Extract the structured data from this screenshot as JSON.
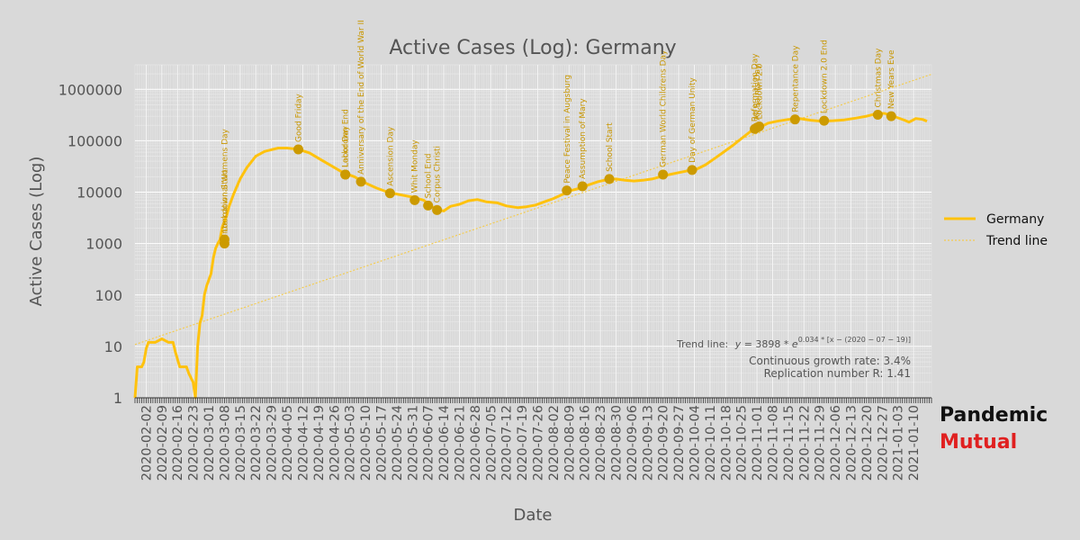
{
  "chart_data": {
    "type": "line",
    "title": "Active Cases (Log): Germany",
    "xlabel": "Date",
    "ylabel": "Active Cases (Log)",
    "y_scale": "log",
    "ylim": [
      1,
      3000000
    ],
    "xlim": [
      "2020-01-28",
      "2021-01-18"
    ],
    "yticks": [
      1,
      10,
      100,
      1000,
      10000,
      100000,
      1000000
    ],
    "ytick_labels": [
      "1",
      "10",
      "100",
      "1000",
      "10000",
      "100000",
      "1000000"
    ],
    "xtick_labels": [
      "2020-02-02",
      "2020-02-09",
      "2020-02-16",
      "2020-02-23",
      "2020-03-01",
      "2020-03-08",
      "2020-03-15",
      "2020-03-22",
      "2020-03-29",
      "2020-04-05",
      "2020-04-12",
      "2020-04-19",
      "2020-04-26",
      "2020-05-03",
      "2020-05-10",
      "2020-05-17",
      "2020-05-24",
      "2020-05-31",
      "2020-06-07",
      "2020-06-14",
      "2020-06-21",
      "2020-06-28",
      "2020-07-05",
      "2020-07-12",
      "2020-07-19",
      "2020-07-26",
      "2020-08-02",
      "2020-08-09",
      "2020-08-16",
      "2020-08-23",
      "2020-08-30",
      "2020-09-06",
      "2020-09-13",
      "2020-09-20",
      "2020-09-27",
      "2020-10-04",
      "2020-10-11",
      "2020-10-18",
      "2020-10-25",
      "2020-11-01",
      "2020-11-08",
      "2020-11-15",
      "2020-11-22",
      "2020-11-29",
      "2020-12-06",
      "2020-12-13",
      "2020-12-20",
      "2020-12-27",
      "2021-01-03",
      "2021-01-10"
    ],
    "grid": true,
    "legend_position": "right",
    "colors": {
      "series": "#ffc20e",
      "trend": "#f4cc50",
      "marker": "#cc9a00",
      "event_text": "#c89600",
      "background": "#d9d9d9",
      "grid": "#ffffff"
    },
    "series": [
      {
        "name": "Germany",
        "points": [
          [
            "2020-01-28",
            1
          ],
          [
            "2020-01-29",
            4
          ],
          [
            "2020-01-31",
            4
          ],
          [
            "2020-02-01",
            5
          ],
          [
            "2020-02-02",
            9
          ],
          [
            "2020-02-03",
            12
          ],
          [
            "2020-02-06",
            12
          ],
          [
            "2020-02-09",
            14
          ],
          [
            "2020-02-12",
            12
          ],
          [
            "2020-02-14",
            12
          ],
          [
            "2020-02-15",
            8
          ],
          [
            "2020-02-17",
            4
          ],
          [
            "2020-02-20",
            4
          ],
          [
            "2020-02-21",
            3
          ],
          [
            "2020-02-23",
            2
          ],
          [
            "2020-02-24",
            1
          ],
          [
            "2020-02-25",
            10
          ],
          [
            "2020-02-26",
            28
          ],
          [
            "2020-02-27",
            40
          ],
          [
            "2020-02-28",
            100
          ],
          [
            "2020-02-29",
            150
          ],
          [
            "2020-03-02",
            260
          ],
          [
            "2020-03-03",
            520
          ],
          [
            "2020-03-04",
            800
          ],
          [
            "2020-03-05",
            1000
          ],
          [
            "2020-03-06",
            1200
          ],
          [
            "2020-03-07",
            2100
          ],
          [
            "2020-03-09",
            3500
          ],
          [
            "2020-03-10",
            5200
          ],
          [
            "2020-03-12",
            9000
          ],
          [
            "2020-03-15",
            18000
          ],
          [
            "2020-03-18",
            30000
          ],
          [
            "2020-03-22",
            50000
          ],
          [
            "2020-03-26",
            62000
          ],
          [
            "2020-04-01",
            72000
          ],
          [
            "2020-04-05",
            72000
          ],
          [
            "2020-04-10",
            68000
          ],
          [
            "2020-04-15",
            58000
          ],
          [
            "2020-04-20",
            43000
          ],
          [
            "2020-04-25",
            32000
          ],
          [
            "2020-04-30",
            24000
          ],
          [
            "2020-05-05",
            20000
          ],
          [
            "2020-05-10",
            15000
          ],
          [
            "2020-05-15",
            12000
          ],
          [
            "2020-05-20",
            10000
          ],
          [
            "2020-05-25",
            9000
          ],
          [
            "2020-05-31",
            8000
          ],
          [
            "2020-06-05",
            7000
          ],
          [
            "2020-06-08",
            5500
          ],
          [
            "2020-06-11",
            4500
          ],
          [
            "2020-06-14",
            4300
          ],
          [
            "2020-06-17",
            5300
          ],
          [
            "2020-06-21",
            5800
          ],
          [
            "2020-06-25",
            6800
          ],
          [
            "2020-06-29",
            7200
          ],
          [
            "2020-07-03",
            6500
          ],
          [
            "2020-07-08",
            6200
          ],
          [
            "2020-07-12",
            5400
          ],
          [
            "2020-07-17",
            5000
          ],
          [
            "2020-07-21",
            5200
          ],
          [
            "2020-07-25",
            5600
          ],
          [
            "2020-07-29",
            6500
          ],
          [
            "2020-08-02",
            7500
          ],
          [
            "2020-08-06",
            9000
          ],
          [
            "2020-08-10",
            10800
          ],
          [
            "2020-08-14",
            12000
          ],
          [
            "2020-08-18",
            14000
          ],
          [
            "2020-08-22",
            16000
          ],
          [
            "2020-08-26",
            17500
          ],
          [
            "2020-08-30",
            18000
          ],
          [
            "2020-09-03",
            17000
          ],
          [
            "2020-09-07",
            16500
          ],
          [
            "2020-09-11",
            17000
          ],
          [
            "2020-09-15",
            18000
          ],
          [
            "2020-09-19",
            20000
          ],
          [
            "2020-09-23",
            22000
          ],
          [
            "2020-09-27",
            24000
          ],
          [
            "2020-10-01",
            26000
          ],
          [
            "2020-10-05",
            28000
          ],
          [
            "2020-10-09",
            34000
          ],
          [
            "2020-10-13",
            45000
          ],
          [
            "2020-10-17",
            60000
          ],
          [
            "2020-10-21",
            80000
          ],
          [
            "2020-10-25",
            110000
          ],
          [
            "2020-10-29",
            150000
          ],
          [
            "2020-11-02",
            180000
          ],
          [
            "2020-11-06",
            220000
          ],
          [
            "2020-11-10",
            240000
          ],
          [
            "2020-11-15",
            260000
          ],
          [
            "2020-11-20",
            270000
          ],
          [
            "2020-11-25",
            250000
          ],
          [
            "2020-11-30",
            240000
          ],
          [
            "2020-12-05",
            245000
          ],
          [
            "2020-12-10",
            255000
          ],
          [
            "2020-12-15",
            275000
          ],
          [
            "2020-12-20",
            300000
          ],
          [
            "2020-12-25",
            340000
          ],
          [
            "2020-12-28",
            340000
          ],
          [
            "2021-01-01",
            300000
          ],
          [
            "2021-01-06",
            250000
          ],
          [
            "2021-01-08",
            230000
          ],
          [
            "2021-01-11",
            270000
          ],
          [
            "2021-01-14",
            260000
          ],
          [
            "2021-01-16",
            240000
          ]
        ]
      },
      {
        "name": "Trend line",
        "formula": "3898 * e^(0.034 * (x - 2020-07-19))"
      }
    ],
    "events": [
      {
        "date": "2020-03-08",
        "value": 1000,
        "label": "International Womens Day"
      },
      {
        "date": "2020-03-08",
        "value": 1200,
        "label": "Lockdown Start"
      },
      {
        "date": "2020-04-10",
        "value": 68000,
        "label": "Good Friday"
      },
      {
        "date": "2020-05-01",
        "value": 22000,
        "label": "Labor Day"
      },
      {
        "date": "2020-05-01",
        "value": 22000,
        "label": "Lockdown End"
      },
      {
        "date": "2020-05-08",
        "value": 16000,
        "label": "Anniversary of the End of World War II"
      },
      {
        "date": "2020-05-21",
        "value": 9500,
        "label": "Ascension Day"
      },
      {
        "date": "2020-06-01",
        "value": 7000,
        "label": "Whit Monday"
      },
      {
        "date": "2020-06-07",
        "value": 5500,
        "label": "School End"
      },
      {
        "date": "2020-06-11",
        "value": 4500,
        "label": "Corpus Christi"
      },
      {
        "date": "2020-08-08",
        "value": 10800,
        "label": "Peace Festival in Augsburg"
      },
      {
        "date": "2020-08-15",
        "value": 13000,
        "label": "Assumption of Mary"
      },
      {
        "date": "2020-08-27",
        "value": 18000,
        "label": "School Start"
      },
      {
        "date": "2020-09-20",
        "value": 22000,
        "label": "German World Childrens Day"
      },
      {
        "date": "2020-10-03",
        "value": 27000,
        "label": "Day of German Unity"
      },
      {
        "date": "2020-10-31",
        "value": 170000,
        "label": "Reformation Day"
      },
      {
        "date": "2020-11-01",
        "value": 180000,
        "label": "All Saints Day"
      },
      {
        "date": "2020-11-02",
        "value": 190000,
        "label": "Lockdown 2.0"
      },
      {
        "date": "2020-11-18",
        "value": 260000,
        "label": "Repentance Day"
      },
      {
        "date": "2020-12-01",
        "value": 245000,
        "label": "Lockdown 2.0 End"
      },
      {
        "date": "2020-12-25",
        "value": 320000,
        "label": "Christmas Day"
      },
      {
        "date": "2020-12-31",
        "value": 300000,
        "label": "New Years Eve"
      }
    ],
    "annotations": {
      "trend_equation_prefix": "Trend line:",
      "growth_rate": "Continuous growth rate: 3.4%",
      "replication": "Replication number R: 1.41"
    }
  },
  "branding": {
    "line1": "Pandemic",
    "line2": "Mutual"
  }
}
